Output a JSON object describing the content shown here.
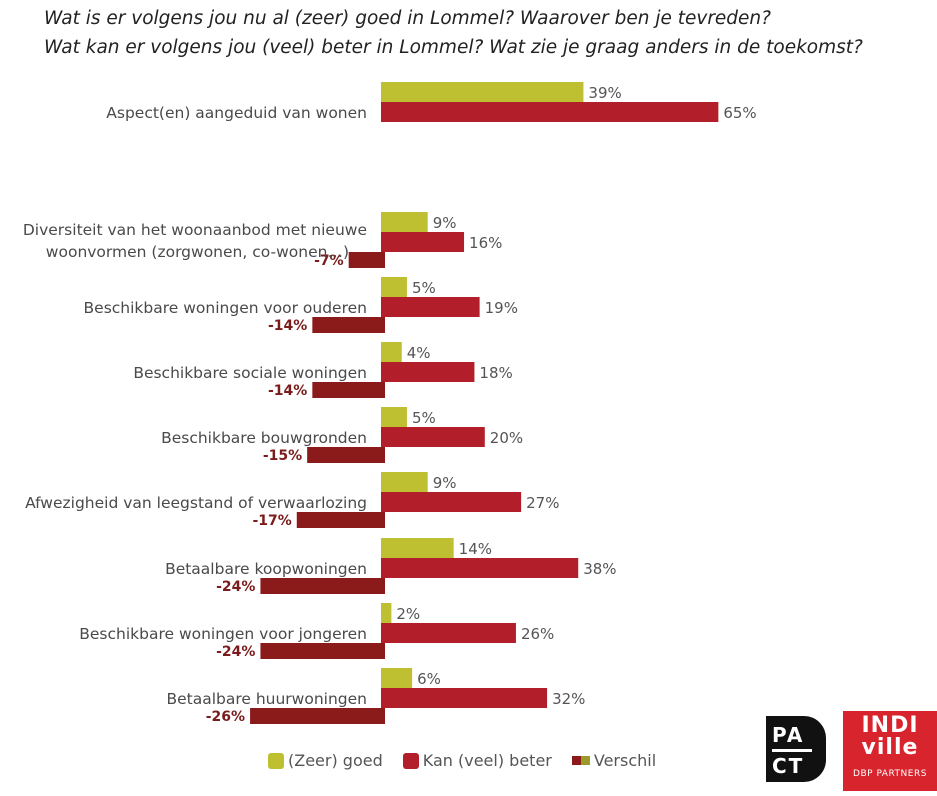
{
  "header": {
    "title_line1": "Wat is er volgens jou nu al (zeer) goed in Lommel? Waarover ben je tevreden?",
    "title_line2": "Wat kan er volgens jou (veel) beter in Lommel? Wat zie je graag anders in de toekomst?"
  },
  "colors": {
    "goed": "#bfbf32",
    "beter": "#b21f2a",
    "verschil": "#8b1a1a",
    "verschil_legend_second": "#9a9a2a"
  },
  "chart_data": {
    "type": "bar",
    "orientation": "horizontal",
    "title": "Wat is er volgens jou nu al (zeer) goed in Lommel? Waarover ben je tevreden? Wat kan er volgens jou (veel) beter in Lommel? Wat zie je graag anders in de toekomst?",
    "unit": "%",
    "summary": {
      "category": "Aspect(en) aangeduid van wonen",
      "goed": 39,
      "beter": 65,
      "goed_label": "39%",
      "beter_label": "65%"
    },
    "categories": [
      {
        "label_lines": [
          "Diversiteit van het woonaanbod met nieuwe",
          "woonvormen (zorgwonen, co-wonen…)"
        ],
        "goed": 9,
        "beter": 16,
        "verschil": -7,
        "goed_label": "9%",
        "beter_label": "16%",
        "verschil_label": "-7%"
      },
      {
        "label_lines": [
          "Beschikbare woningen voor ouderen"
        ],
        "goed": 5,
        "beter": 19,
        "verschil": -14,
        "goed_label": "5%",
        "beter_label": "19%",
        "verschil_label": "-14%"
      },
      {
        "label_lines": [
          "Beschikbare sociale woningen"
        ],
        "goed": 4,
        "beter": 18,
        "verschil": -14,
        "goed_label": "4%",
        "beter_label": "18%",
        "verschil_label": "-14%"
      },
      {
        "label_lines": [
          "Beschikbare bouwgronden"
        ],
        "goed": 5,
        "beter": 20,
        "verschil": -15,
        "goed_label": "5%",
        "beter_label": "20%",
        "verschil_label": "-15%"
      },
      {
        "label_lines": [
          "Afwezigheid van leegstand of verwaarlozing"
        ],
        "goed": 9,
        "beter": 27,
        "verschil": -17,
        "goed_label": "9%",
        "beter_label": "27%",
        "verschil_label": "-17%"
      },
      {
        "label_lines": [
          "Betaalbare koopwoningen"
        ],
        "goed": 14,
        "beter": 38,
        "verschil": -24,
        "goed_label": "14%",
        "beter_label": "38%",
        "verschil_label": "-24%"
      },
      {
        "label_lines": [
          "Beschikbare woningen voor jongeren"
        ],
        "goed": 2,
        "beter": 26,
        "verschil": -24,
        "goed_label": "2%",
        "beter_label": "26%",
        "verschil_label": "-24%"
      },
      {
        "label_lines": [
          "Betaalbare huurwoningen"
        ],
        "goed": 6,
        "beter": 32,
        "verschil": -26,
        "goed_label": "6%",
        "beter_label": "32%",
        "verschil_label": "-26%"
      }
    ],
    "legend": [
      "(Zeer) goed",
      "Kan (veel) beter",
      "Verschil"
    ],
    "legend_placement": "bottom",
    "grid": false
  },
  "logos": {
    "pact_line1": "PA",
    "pact_line2": "CT",
    "indiville_line1": "INDI",
    "indiville_line2": "ville",
    "indiville_tagline": "DBP PARTNERS"
  }
}
